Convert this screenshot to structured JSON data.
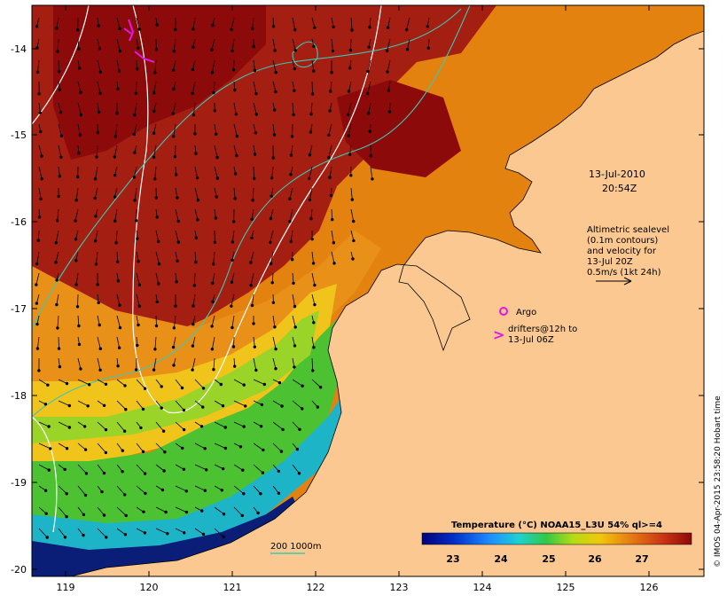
{
  "map": {
    "date": "13-Jul-2010",
    "time": "20:54Z",
    "axes": {
      "lat_labels": [
        "-14",
        "-15",
        "-16",
        "-17",
        "-18",
        "-19",
        "-20"
      ],
      "lon_labels": [
        "119",
        "120",
        "121",
        "122",
        "123",
        "124",
        "125",
        "126"
      ]
    },
    "altimetry_legend": [
      "Altimetric sealevel",
      "(0.1m contours)",
      "and velocity for",
      "13-Jul 20Z",
      "0.5m/s (1kt 24h)"
    ],
    "argo_label": "Argo",
    "drifters_label": [
      "drifters@12h to",
      "13-Jul 06Z"
    ],
    "bathymetry_label": "200  1000m",
    "colorbar": {
      "title": "Temperature (°C) NOAA15_L3U 54% ql>=4",
      "ticks": [
        "23",
        "24",
        "25",
        "26",
        "27"
      ]
    },
    "credit": "© IMOS 04-Apr-2015 23:58:20 Hobart time",
    "colors": {
      "land": "#fac890",
      "warm": "#b42814",
      "hot": "#8c0a0a",
      "orange": "#e6820a",
      "cool_green": "#50c832",
      "cold_blue": "#0a1e78",
      "contour_white": "#ffffff",
      "isobath_cyan": "#3cc8b4",
      "drifter_magenta": "#e614e6"
    }
  }
}
